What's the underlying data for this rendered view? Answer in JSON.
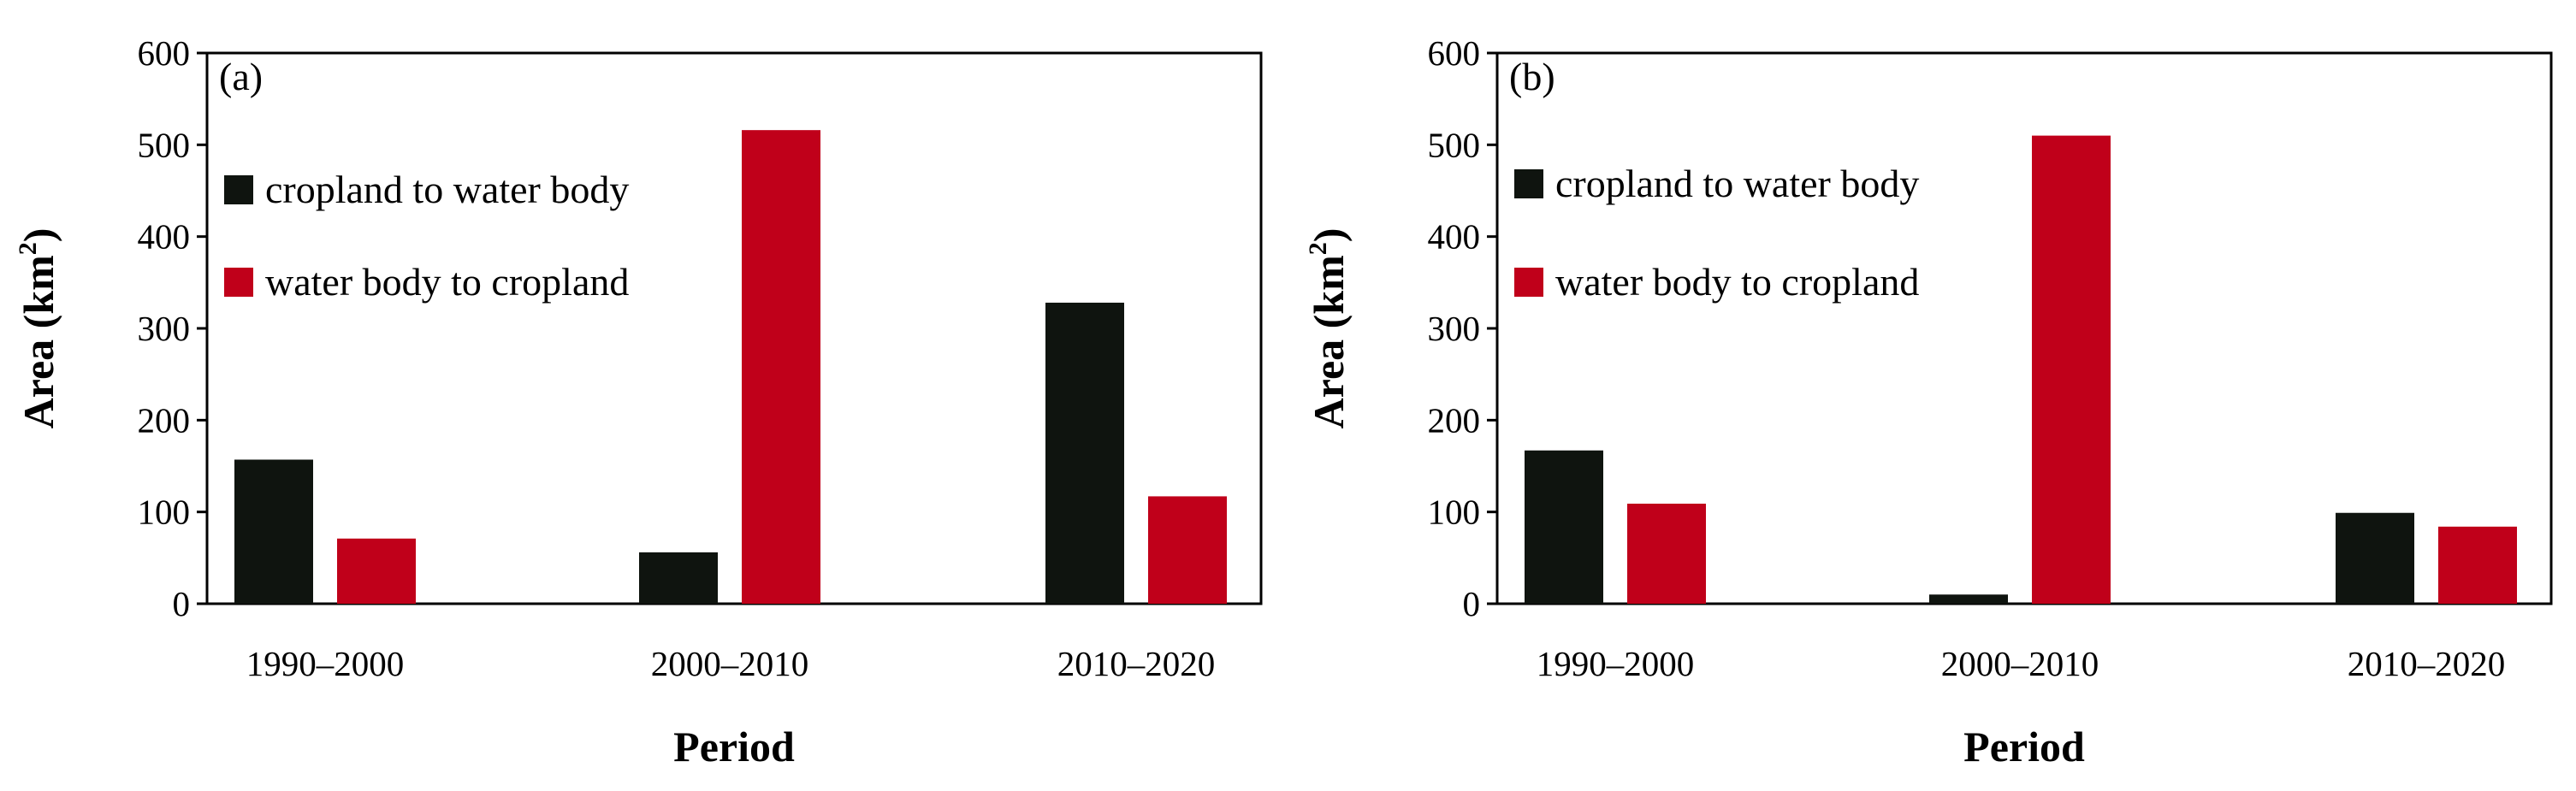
{
  "chart_data": [
    {
      "type": "bar",
      "panel_label": "(a)",
      "categories": [
        "1990–2000",
        "2000–2010",
        "2010–2020"
      ],
      "series": [
        {
          "name": "cropland to water body",
          "values": [
            157,
            56,
            328
          ],
          "color": "#0f140f"
        },
        {
          "name": "water body to cropland",
          "values": [
            71,
            516,
            117
          ],
          "color": "#c0001a"
        }
      ],
      "title": "",
      "xlabel": "Period",
      "ylabel": "Area (km",
      "ylabel_sup": "2",
      "ylabel_close": ")",
      "ylim": [
        0,
        600
      ],
      "yticks": [
        0,
        100,
        200,
        300,
        400,
        500,
        600
      ],
      "ytick_labels": [
        "0",
        "100",
        "200",
        "300",
        "400",
        "500",
        "600"
      ],
      "grid": false,
      "legend_position": "top-left"
    },
    {
      "type": "bar",
      "panel_label": "(b)",
      "categories": [
        "1990–2000",
        "2000–2010",
        "2010–2020"
      ],
      "series": [
        {
          "name": "cropland to water body",
          "values": [
            167,
            10,
            99
          ],
          "color": "#0f140f"
        },
        {
          "name": "water body to cropland",
          "values": [
            109,
            510,
            84
          ],
          "color": "#c0001a"
        }
      ],
      "title": "",
      "xlabel": "Period",
      "ylabel": "Area (km",
      "ylabel_sup": "2",
      "ylabel_close": ")",
      "ylim": [
        0,
        600
      ],
      "yticks": [
        0,
        100,
        200,
        300,
        400,
        500,
        600
      ],
      "ytick_labels": [
        "0",
        "100",
        "200",
        "300",
        "400",
        "500",
        "600"
      ],
      "grid": false,
      "legend_position": "top-left"
    }
  ]
}
